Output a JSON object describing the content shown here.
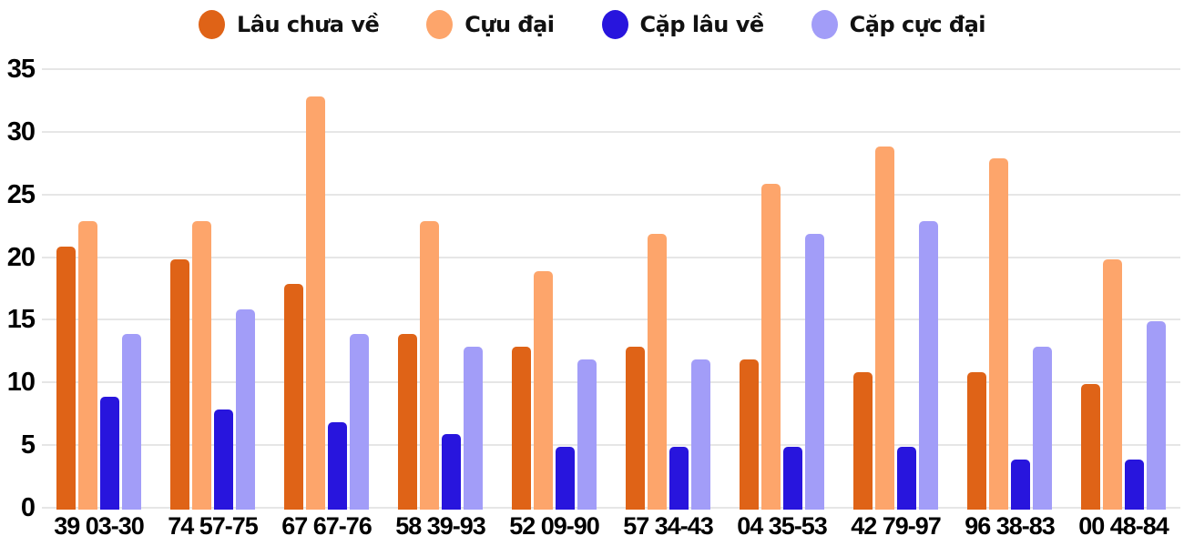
{
  "colors": {
    "background": "#ffffff",
    "grid": "#e6e6e6",
    "text": "#000000"
  },
  "chart_data": {
    "type": "bar",
    "title": "",
    "xlabel": "",
    "ylabel": "",
    "grid": true,
    "legend_position": "top",
    "ylim": [
      0,
      35
    ],
    "yticks": [
      0,
      5,
      10,
      15,
      20,
      25,
      30,
      35
    ],
    "categories": [
      "39 03-30",
      "74 57-75",
      "67 67-76",
      "58 39-93",
      "52 09-90",
      "57 34-43",
      "04 35-53",
      "42 79-97",
      "96 38-83",
      "00 48-84"
    ],
    "series": [
      {
        "name": "Lâu chưa về",
        "color": "#df6317",
        "values": [
          21,
          20,
          18,
          14,
          13,
          13,
          12,
          11,
          11,
          10
        ]
      },
      {
        "name": "Cựu đại",
        "color": "#fda56b",
        "values": [
          23,
          23,
          33,
          23,
          19,
          22,
          26,
          29,
          28,
          20
        ]
      },
      {
        "name": "Cặp lâu về",
        "color": "#2815dd",
        "values": [
          9,
          8,
          7,
          6,
          5,
          5,
          5,
          5,
          4,
          4
        ]
      },
      {
        "name": "Cặp cực đại",
        "color": "#a29df8",
        "values": [
          14,
          16,
          14,
          13,
          12,
          12,
          22,
          23,
          13,
          15
        ]
      }
    ]
  }
}
